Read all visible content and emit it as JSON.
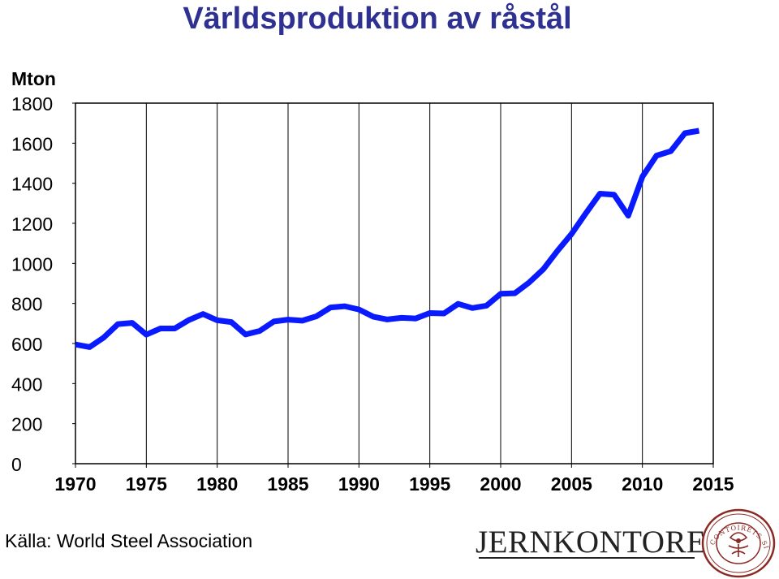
{
  "chart_data": {
    "type": "line",
    "title": "Världsproduktion av råstål",
    "ylabel": "Mton",
    "xlim": [
      1970,
      2015
    ],
    "ylim": [
      0,
      1800
    ],
    "xticks": [
      1970,
      1975,
      1980,
      1985,
      1990,
      1995,
      2000,
      2005,
      2010,
      2015
    ],
    "yticks": [
      0,
      200,
      400,
      600,
      800,
      1000,
      1200,
      1400,
      1600,
      1800
    ],
    "grid": true,
    "series_color": "#0a1aff",
    "x": [
      1970,
      1971,
      1972,
      1973,
      1974,
      1975,
      1976,
      1977,
      1978,
      1979,
      1980,
      1981,
      1982,
      1983,
      1984,
      1985,
      1986,
      1987,
      1988,
      1989,
      1990,
      1991,
      1992,
      1993,
      1994,
      1995,
      1996,
      1997,
      1998,
      1999,
      2000,
      2001,
      2002,
      2003,
      2004,
      2005,
      2006,
      2007,
      2008,
      2009,
      2010,
      2011,
      2012,
      2013,
      2014
    ],
    "values": [
      595,
      582,
      630,
      697,
      703,
      644,
      675,
      675,
      717,
      747,
      716,
      707,
      645,
      663,
      710,
      719,
      714,
      736,
      780,
      786,
      770,
      734,
      720,
      728,
      725,
      752,
      750,
      798,
      777,
      789,
      848,
      851,
      904,
      970,
      1062,
      1147,
      1249,
      1348,
      1343,
      1238,
      1433,
      1538,
      1560,
      1650,
      1662
    ]
  },
  "source": "Källa: World Steel Association",
  "logo": {
    "name": "JERNKONTORET",
    "seal_text": "JERN CONTOIRETS SIGILL"
  }
}
